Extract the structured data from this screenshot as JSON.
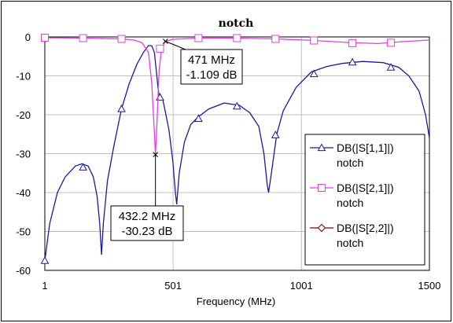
{
  "chart_data": {
    "type": "line",
    "title": "notch",
    "xlabel": "Frequency (MHz)",
    "ylabel": "",
    "xlim": [
      1,
      1500
    ],
    "ylim": [
      -60,
      0
    ],
    "grid": true,
    "x_ticks": [
      1,
      501,
      1001,
      1500
    ],
    "y_ticks": [
      0,
      -10,
      -20,
      -30,
      -40,
      -50,
      -60
    ],
    "legend_position": "right",
    "series": [
      {
        "name": "DB(|S[1,1]|)",
        "sub": "notch",
        "color": "#1a1aa0",
        "marker": "triangle",
        "points": [
          [
            1,
            -57.5
          ],
          [
            20,
            -48
          ],
          [
            50,
            -40
          ],
          [
            80,
            -36
          ],
          [
            120,
            -33.2
          ],
          [
            145,
            -32.6
          ],
          [
            170,
            -33.2
          ],
          [
            190,
            -36
          ],
          [
            205,
            -41
          ],
          [
            215,
            -48
          ],
          [
            222,
            -56
          ],
          [
            229,
            -48
          ],
          [
            245,
            -37
          ],
          [
            270,
            -28
          ],
          [
            300,
            -18.5
          ],
          [
            330,
            -12
          ],
          [
            360,
            -7
          ],
          [
            385,
            -4
          ],
          [
            405,
            -2.2
          ],
          [
            418,
            -2.3
          ],
          [
            428,
            -4
          ],
          [
            436,
            -9
          ],
          [
            442,
            -13
          ],
          [
            448,
            -15.8
          ],
          [
            455,
            -15.6
          ],
          [
            462,
            -16.5
          ],
          [
            470,
            -19
          ],
          [
            485,
            -24
          ],
          [
            500,
            -32
          ],
          [
            510,
            -40
          ],
          [
            515,
            -43
          ],
          [
            525,
            -35
          ],
          [
            545,
            -27
          ],
          [
            570,
            -22.5
          ],
          [
            600,
            -20.5
          ],
          [
            640,
            -18.5
          ],
          [
            700,
            -17
          ],
          [
            760,
            -17.6
          ],
          [
            800,
            -19.5
          ],
          [
            835,
            -23
          ],
          [
            855,
            -30
          ],
          [
            868,
            -38
          ],
          [
            873,
            -40
          ],
          [
            882,
            -36
          ],
          [
            905,
            -25
          ],
          [
            930,
            -19
          ],
          [
            980,
            -13
          ],
          [
            1040,
            -9
          ],
          [
            1100,
            -7.6
          ],
          [
            1160,
            -6.8
          ],
          [
            1240,
            -6.3
          ],
          [
            1320,
            -6.6
          ],
          [
            1380,
            -7.8
          ],
          [
            1420,
            -10
          ],
          [
            1460,
            -14
          ],
          [
            1485,
            -20
          ],
          [
            1500,
            -26
          ]
        ],
        "markers": [
          [
            1,
            -57.5
          ],
          [
            150,
            -33.5
          ],
          [
            300,
            -18.5
          ],
          [
            450,
            -15.5
          ],
          [
            600,
            -21
          ],
          [
            750,
            -17.8
          ],
          [
            900,
            -25.2
          ],
          [
            1050,
            -9.5
          ],
          [
            1200,
            -6.5
          ],
          [
            1350,
            -7.8
          ]
        ]
      },
      {
        "name": "DB(|S[2,1]|)",
        "sub": "notch",
        "color": "#e040e0",
        "marker": "square",
        "points": [
          [
            1,
            -0.2
          ],
          [
            150,
            -0.3
          ],
          [
            300,
            -0.5
          ],
          [
            350,
            -0.8
          ],
          [
            380,
            -1.5
          ],
          [
            405,
            -4
          ],
          [
            418,
            -12
          ],
          [
            426,
            -22
          ],
          [
            432.2,
            -30.23
          ],
          [
            438,
            -22
          ],
          [
            446,
            -9
          ],
          [
            456,
            -3
          ],
          [
            471,
            -1.109
          ],
          [
            500,
            -0.6
          ],
          [
            600,
            -0.3
          ],
          [
            750,
            -0.3
          ],
          [
            900,
            -0.5
          ],
          [
            1050,
            -0.9
          ],
          [
            1200,
            -1.5
          ],
          [
            1300,
            -1.7
          ],
          [
            1400,
            -1.2
          ],
          [
            1500,
            -0.8
          ]
        ],
        "markers": [
          [
            1,
            -0.2
          ],
          [
            150,
            -0.3
          ],
          [
            300,
            -0.5
          ],
          [
            450,
            -3
          ],
          [
            600,
            -0.3
          ],
          [
            750,
            -0.3
          ],
          [
            900,
            -0.5
          ],
          [
            1050,
            -0.9
          ],
          [
            1200,
            -1.6
          ],
          [
            1350,
            -1.5
          ]
        ]
      },
      {
        "name": "DB(|S[2,2]|)",
        "sub": "notch",
        "color": "#800000",
        "marker": "diamond",
        "points": [],
        "markers": []
      }
    ],
    "annotations": [
      {
        "line1": "471 MHz",
        "line2": "-1.109 dB",
        "x": 471,
        "y": -1.109
      },
      {
        "line1": "432.2 MHz",
        "line2": "-30.23 dB",
        "x": 432.2,
        "y": -30.23
      }
    ]
  }
}
